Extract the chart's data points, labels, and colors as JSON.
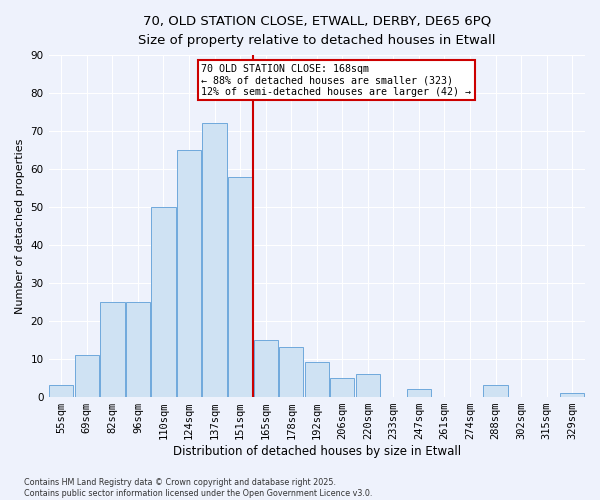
{
  "title_line1": "70, OLD STATION CLOSE, ETWALL, DERBY, DE65 6PQ",
  "title_line2": "Size of property relative to detached houses in Etwall",
  "xlabel": "Distribution of detached houses by size in Etwall",
  "ylabel": "Number of detached properties",
  "categories": [
    "55sqm",
    "69sqm",
    "82sqm",
    "96sqm",
    "110sqm",
    "124sqm",
    "137sqm",
    "151sqm",
    "165sqm",
    "178sqm",
    "192sqm",
    "206sqm",
    "220sqm",
    "233sqm",
    "247sqm",
    "261sqm",
    "274sqm",
    "288sqm",
    "302sqm",
    "315sqm",
    "329sqm"
  ],
  "values": [
    3,
    11,
    25,
    25,
    50,
    65,
    72,
    58,
    15,
    13,
    9,
    5,
    6,
    0,
    2,
    0,
    0,
    3,
    0,
    0,
    1
  ],
  "bar_color": "#cfe2f3",
  "bar_edge_color": "#6fa8dc",
  "vline_color": "#cc0000",
  "vline_xindex": 8,
  "annotation_text": "70 OLD STATION CLOSE: 168sqm\n← 88% of detached houses are smaller (323)\n12% of semi-detached houses are larger (42) →",
  "annotation_box_edgecolor": "#cc0000",
  "ylim": [
    0,
    90
  ],
  "yticks": [
    0,
    10,
    20,
    30,
    40,
    50,
    60,
    70,
    80,
    90
  ],
  "footer_text": "Contains HM Land Registry data © Crown copyright and database right 2025.\nContains public sector information licensed under the Open Government Licence v3.0.",
  "bg_color": "#eef2fc",
  "grid_color": "#ffffff",
  "title1_fontsize": 9.5,
  "title2_fontsize": 8.5,
  "xlabel_fontsize": 8.5,
  "ylabel_fontsize": 8,
  "tick_fontsize": 7.5,
  "footer_fontsize": 5.8
}
